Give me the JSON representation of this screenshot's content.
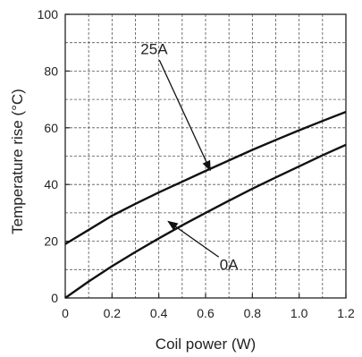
{
  "chart_data": {
    "type": "line",
    "title": "",
    "xlabel": "Coil power (W)",
    "ylabel": "Temperature rise (°C)",
    "xlim": [
      0,
      1.2
    ],
    "ylim": [
      0,
      100
    ],
    "x_ticks": [
      "0",
      "0.2",
      "0.4",
      "0.6",
      "0.8",
      "1.0",
      "1.2"
    ],
    "y_ticks": [
      "0",
      "20",
      "40",
      "60",
      "80",
      "100"
    ],
    "grid": true,
    "grid_style": "dashed",
    "series": [
      {
        "name": "25A",
        "x": [
          0,
          0.1,
          0.2,
          0.3,
          0.4,
          0.5,
          0.6,
          0.7,
          0.8,
          0.9,
          1.0,
          1.1,
          1.2
        ],
        "y": [
          19,
          24,
          29,
          33.2,
          37.2,
          41,
          44.8,
          48.5,
          52.2,
          55.7,
          59.1,
          62.4,
          65.6
        ]
      },
      {
        "name": "0A",
        "x": [
          0,
          0.1,
          0.2,
          0.3,
          0.4,
          0.5,
          0.6,
          0.7,
          0.8,
          0.9,
          1.0,
          1.1,
          1.2
        ],
        "y": [
          0,
          5.8,
          11.2,
          16.2,
          21,
          25.6,
          30,
          34.3,
          38.5,
          42.5,
          46.4,
          50.3,
          54
        ]
      }
    ],
    "annotations": [
      {
        "text": "25A",
        "label_x": 0.38,
        "label_y": 86,
        "target_x": 0.62,
        "target_y": 45
      },
      {
        "text": "0A",
        "label_x": 0.7,
        "label_y": 10,
        "target_x": 0.44,
        "target_y": 27
      }
    ],
    "colors": {
      "line": "#111111",
      "grid": "#555555",
      "axis": "#222222"
    }
  }
}
